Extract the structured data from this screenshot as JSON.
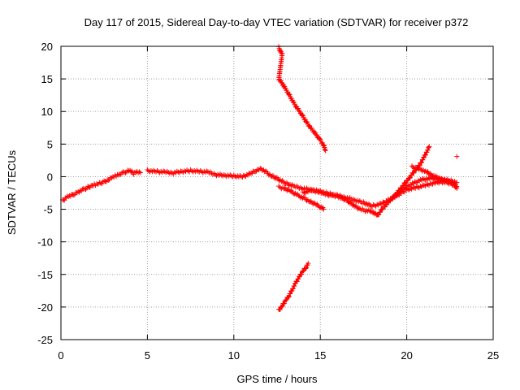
{
  "chart_data": {
    "type": "scatter",
    "title": "Day 117 of 2015, Sidereal Day-to-day VTEC variation (SDTVAR) for receiver p372",
    "xlabel": "GPS time / hours",
    "ylabel": "SDTVAR / TECUs",
    "xlim": [
      0,
      25
    ],
    "ylim": [
      -25,
      20
    ],
    "xticks": [
      0,
      5,
      10,
      15,
      20,
      25
    ],
    "yticks": [
      -25,
      -20,
      -15,
      -10,
      -5,
      0,
      5,
      10,
      15,
      20
    ],
    "grid": true,
    "marker": "+",
    "color": "#ff0000",
    "series": [
      {
        "name": "track-main-early",
        "points": [
          [
            0.1,
            -3.7
          ],
          [
            0.3,
            -3.2
          ],
          [
            0.5,
            -3.0
          ],
          [
            0.8,
            -2.6
          ],
          [
            1.0,
            -2.3
          ],
          [
            1.3,
            -2.0
          ],
          [
            1.5,
            -1.7
          ],
          [
            1.8,
            -1.4
          ],
          [
            2.0,
            -1.2
          ],
          [
            2.3,
            -1.0
          ],
          [
            2.5,
            -0.8
          ],
          [
            2.8,
            -0.4
          ],
          [
            3.0,
            -0.1
          ],
          [
            3.2,
            0.2
          ],
          [
            3.4,
            0.4
          ],
          [
            3.6,
            0.6
          ],
          [
            3.8,
            0.8
          ],
          [
            4.0,
            0.9
          ],
          [
            4.2,
            0.5
          ],
          [
            4.4,
            0.8
          ],
          [
            4.6,
            0.6
          ]
        ]
      },
      {
        "name": "track-main-mid",
        "points": [
          [
            5.0,
            0.9
          ],
          [
            5.5,
            0.8
          ],
          [
            6.0,
            0.7
          ],
          [
            6.5,
            0.6
          ],
          [
            7.0,
            0.8
          ],
          [
            7.5,
            0.9
          ],
          [
            8.0,
            0.8
          ],
          [
            8.5,
            0.7
          ],
          [
            9.0,
            0.3
          ],
          [
            9.5,
            0.2
          ],
          [
            10.0,
            0.1
          ],
          [
            10.5,
            0.0
          ],
          [
            11.0,
            0.5
          ],
          [
            11.3,
            1.0
          ],
          [
            11.6,
            1.2
          ],
          [
            11.9,
            0.6
          ],
          [
            12.2,
            0.1
          ],
          [
            12.5,
            -0.3
          ]
        ]
      },
      {
        "name": "track-lower-band",
        "points": [
          [
            12.6,
            -1.6
          ],
          [
            12.9,
            -1.8
          ],
          [
            13.2,
            -2.1
          ],
          [
            13.5,
            -2.5
          ],
          [
            13.8,
            -3.0
          ],
          [
            14.1,
            -3.4
          ],
          [
            14.4,
            -3.8
          ],
          [
            14.7,
            -4.2
          ],
          [
            15.0,
            -4.6
          ],
          [
            15.2,
            -5.0
          ]
        ]
      },
      {
        "name": "track-upper-band",
        "points": [
          [
            12.5,
            -0.3
          ],
          [
            13.0,
            -1.0
          ],
          [
            13.5,
            -1.5
          ],
          [
            14.0,
            -1.8
          ],
          [
            14.5,
            -2.0
          ],
          [
            15.0,
            -2.3
          ],
          [
            15.5,
            -2.6
          ],
          [
            16.0,
            -2.9
          ],
          [
            16.5,
            -3.2
          ],
          [
            17.0,
            -3.6
          ],
          [
            17.5,
            -4.0
          ],
          [
            18.0,
            -4.5
          ],
          [
            18.5,
            -4.2
          ],
          [
            19.0,
            -3.5
          ],
          [
            19.5,
            -2.8
          ],
          [
            20.0,
            -2.0
          ],
          [
            20.5,
            -1.7
          ],
          [
            21.0,
            -1.4
          ],
          [
            21.5,
            -1.0
          ],
          [
            22.0,
            -0.8
          ],
          [
            22.5,
            -1.0
          ],
          [
            22.9,
            -1.5
          ]
        ]
      },
      {
        "name": "track-middle-band",
        "points": [
          [
            14.0,
            -2.5
          ],
          [
            14.5,
            -2.1
          ],
          [
            15.0,
            -2.4
          ],
          [
            15.5,
            -2.8
          ],
          [
            16.0,
            -3.0
          ],
          [
            16.5,
            -3.6
          ],
          [
            17.0,
            -4.5
          ],
          [
            17.3,
            -5.0
          ],
          [
            17.6,
            -5.2
          ],
          [
            18.0,
            -5.3
          ],
          [
            18.3,
            -6.0
          ],
          [
            18.6,
            -4.9
          ],
          [
            19.0,
            -3.8
          ],
          [
            19.3,
            -2.9
          ],
          [
            19.6,
            -2.2
          ],
          [
            20.0,
            -1.5
          ],
          [
            20.4,
            -1.0
          ],
          [
            20.8,
            -0.5
          ],
          [
            21.2,
            -0.3
          ],
          [
            21.6,
            -0.2
          ],
          [
            22.0,
            -0.4
          ],
          [
            22.5,
            -0.6
          ],
          [
            22.9,
            -0.9
          ]
        ]
      },
      {
        "name": "track-rising-branch",
        "points": [
          [
            19.3,
            -3.0
          ],
          [
            19.6,
            -2.0
          ],
          [
            19.9,
            -1.0
          ],
          [
            20.2,
            0.0
          ],
          [
            20.5,
            1.0
          ],
          [
            20.8,
            2.0
          ],
          [
            21.0,
            3.0
          ],
          [
            21.2,
            4.0
          ],
          [
            21.3,
            4.6
          ]
        ]
      },
      {
        "name": "track-falling-branch",
        "points": [
          [
            20.3,
            1.5
          ],
          [
            20.7,
            1.2
          ],
          [
            21.1,
            0.8
          ],
          [
            21.5,
            0.2
          ],
          [
            21.9,
            -0.3
          ],
          [
            22.3,
            -0.7
          ],
          [
            22.7,
            -1.0
          ],
          [
            22.9,
            -1.8
          ]
        ]
      },
      {
        "name": "track-high-arc",
        "points": [
          [
            12.6,
            19.8
          ],
          [
            12.7,
            19.2
          ],
          [
            12.8,
            18.8
          ],
          [
            12.6,
            15.0
          ],
          [
            12.8,
            14.3
          ],
          [
            13.0,
            13.4
          ],
          [
            13.2,
            12.6
          ],
          [
            13.4,
            11.6
          ],
          [
            13.6,
            10.8
          ],
          [
            13.8,
            10.0
          ],
          [
            14.0,
            9.2
          ],
          [
            14.2,
            8.4
          ],
          [
            14.4,
            7.6
          ],
          [
            14.6,
            7.0
          ],
          [
            14.8,
            6.3
          ],
          [
            15.0,
            5.6
          ],
          [
            15.2,
            4.8
          ],
          [
            15.3,
            4.0
          ]
        ]
      },
      {
        "name": "track-low-arc",
        "points": [
          [
            12.6,
            -20.5
          ],
          [
            12.8,
            -19.8
          ],
          [
            13.0,
            -19.0
          ],
          [
            13.2,
            -18.2
          ],
          [
            13.4,
            -17.2
          ],
          [
            13.6,
            -16.2
          ],
          [
            13.8,
            -15.3
          ],
          [
            14.0,
            -14.5
          ],
          [
            14.2,
            -13.8
          ],
          [
            14.3,
            -13.3
          ]
        ]
      },
      {
        "name": "outlier",
        "points": [
          [
            22.9,
            3.1
          ]
        ]
      }
    ]
  }
}
